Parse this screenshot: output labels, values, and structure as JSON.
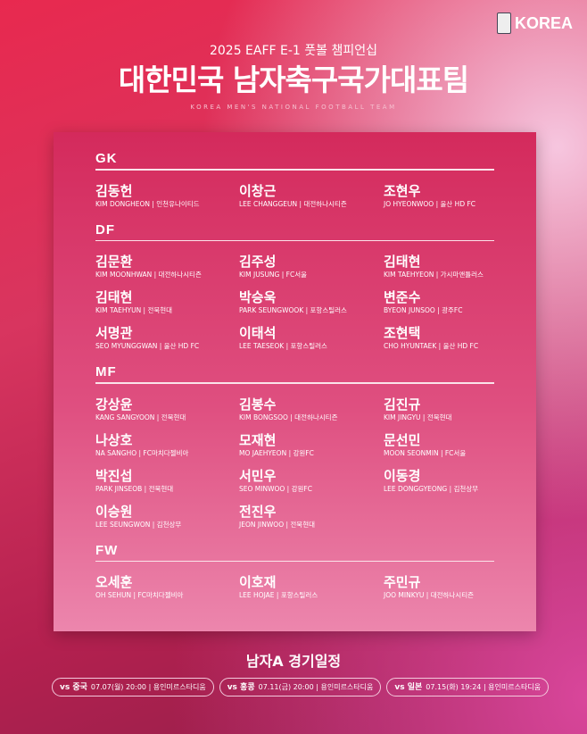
{
  "logo": {
    "text": "KOREA"
  },
  "header": {
    "subtitle": "2025 EAFF E-1 풋볼 챔피언십",
    "title": "대한민국 남자축구국가대표팀",
    "english": "KOREA MEN'S NATIONAL FOOTBALL TEAM"
  },
  "sections": [
    {
      "label": "GK",
      "players": [
        {
          "name": "김동헌",
          "info": "KIM DONGHEON | 인천유나이티드"
        },
        {
          "name": "이창근",
          "info": "LEE CHANGGEUN | 대전하나시티즌"
        },
        {
          "name": "조현우",
          "info": "JO HYEONWOO | 울산 HD FC"
        }
      ]
    },
    {
      "label": "DF",
      "players": [
        {
          "name": "김문환",
          "info": "KIM MOONHWAN | 대전하나시티즌"
        },
        {
          "name": "김주성",
          "info": "KIM JUSUNG | FC서울"
        },
        {
          "name": "김태현",
          "info": "KIM TAEHYEON | 가시마앤틀러스"
        },
        {
          "name": "김태현",
          "info": "KIM TAEHYUN | 전북현대"
        },
        {
          "name": "박승욱",
          "info": "PARK SEUNGWOOK | 포항스틸러스"
        },
        {
          "name": "변준수",
          "info": "BYEON JUNSOO | 광주FC"
        },
        {
          "name": "서명관",
          "info": "SEO MYUNGGWAN | 울산 HD FC"
        },
        {
          "name": "이태석",
          "info": "LEE TAESEOK | 포항스틸러스"
        },
        {
          "name": "조현택",
          "info": "CHO HYUNTAEK | 울산 HD FC"
        }
      ]
    },
    {
      "label": "MF",
      "players": [
        {
          "name": "강상윤",
          "info": "KANG SANGYOON | 전북현대"
        },
        {
          "name": "김봉수",
          "info": "KIM BONGSOO | 대전하나시티즌"
        },
        {
          "name": "김진규",
          "info": "KIM JINGYU | 전북현대"
        },
        {
          "name": "나상호",
          "info": "NA SANGHO | FC마치다젤비아"
        },
        {
          "name": "모재현",
          "info": "MO JAEHYEON | 강원FC"
        },
        {
          "name": "문선민",
          "info": "MOON SEONMIN | FC서울"
        },
        {
          "name": "박진섭",
          "info": "PARK JINSEOB | 전북현대"
        },
        {
          "name": "서민우",
          "info": "SEO MINWOO | 강원FC"
        },
        {
          "name": "이동경",
          "info": "LEE DONGGYEONG | 김천상무"
        },
        {
          "name": "이승원",
          "info": "LEE SEUNGWON | 김천상무"
        },
        {
          "name": "전진우",
          "info": "JEON JINWOO | 전북현대"
        }
      ]
    },
    {
      "label": "FW",
      "players": [
        {
          "name": "오세훈",
          "info": "OH SEHUN | FC마치다젤비아"
        },
        {
          "name": "이호재",
          "info": "LEE HOJAE | 포항스틸러스"
        },
        {
          "name": "주민규",
          "info": "JOO MINKYU | 대전하나시티즌"
        }
      ]
    }
  ],
  "schedule": {
    "title": "남자A 경기일정",
    "matches": [
      {
        "opponent": "vs 중국",
        "detail": "07.07(월) 20:00 | 용인미르스타디움"
      },
      {
        "opponent": "vs 홍콩",
        "detail": "07.11(금) 20:00 | 용인미르스타디움"
      },
      {
        "opponent": "vs 일본",
        "detail": "07.15(화) 19:24 | 용인미르스타디움"
      }
    ]
  }
}
